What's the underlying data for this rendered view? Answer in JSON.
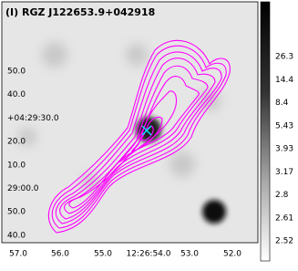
{
  "title": "(I) RGZ J122653.9+042918",
  "y_axis_labels": [
    "50.0",
    "40.0",
    "+04:29:30.0",
    "20.0",
    "10.0",
    "29:00.0",
    "50.0",
    "40.0"
  ],
  "x_axis_labels": [
    "57.0",
    "56.0",
    "55.0",
    "12:26:54.0",
    "53.0",
    "52.0"
  ],
  "colorbar_labels": [
    "26.3",
    "14.4",
    "8.4",
    "5.43",
    "3.93",
    "3.17",
    "2.8",
    "2.61",
    "2.52"
  ]
}
